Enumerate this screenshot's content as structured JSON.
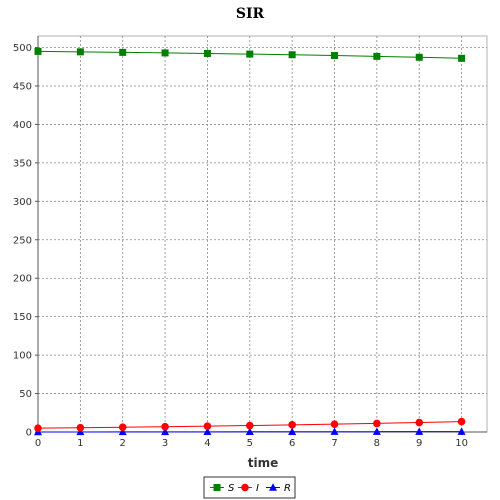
{
  "chart_data": {
    "type": "line",
    "title": "SIR",
    "xlabel": "time",
    "ylabel": "",
    "x": [
      0,
      1,
      2,
      3,
      4,
      5,
      6,
      7,
      8,
      9,
      10
    ],
    "xlim": [
      0,
      10.6
    ],
    "ylim": [
      0,
      515
    ],
    "xticks": [
      0,
      1,
      2,
      3,
      4,
      5,
      6,
      7,
      8,
      9,
      10
    ],
    "yticks": [
      0,
      50,
      100,
      150,
      200,
      250,
      300,
      350,
      400,
      450,
      500
    ],
    "grid": true,
    "legend_position": "bottom-center",
    "series": [
      {
        "name": "S",
        "color": "#008000",
        "marker": "square",
        "values": [
          495,
          494.4,
          493.7,
          493.0,
          492.3,
          491.5,
          490.6,
          489.6,
          488.5,
          487.3,
          486.0
        ]
      },
      {
        "name": "I",
        "color": "#ff0000",
        "marker": "circle",
        "values": [
          5,
          5.6,
          6.2,
          6.9,
          7.6,
          8.4,
          9.3,
          10.2,
          11.2,
          12.3,
          13.5
        ]
      },
      {
        "name": "R",
        "color": "#0000ff",
        "marker": "triangle",
        "values": [
          0,
          0.05,
          0.1,
          0.15,
          0.2,
          0.25,
          0.3,
          0.35,
          0.4,
          0.45,
          0.5
        ]
      }
    ]
  }
}
